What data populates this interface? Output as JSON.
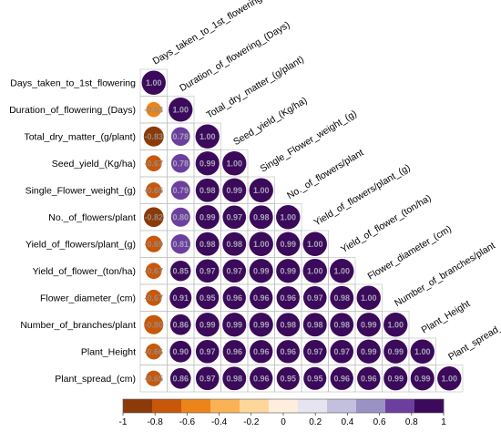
{
  "chart_data": {
    "type": "heatmap",
    "variables": [
      "Days_taken_to_1st_flowering",
      "Duration_of_flowering_(Days)",
      "Total_dry_matter_(g/plant)",
      "Seed_yield_(Kg/ha)",
      "Single_Flower_weight_(g)",
      "No._of_flowers/plant",
      "Yield_of_flowers/plant_(g)",
      "Yield_of_flower_(ton/ha)",
      "Flower_diameter_(cm)",
      "Number_of_branches/plant",
      "Plant_Height",
      "Plant_spread_(cm)"
    ],
    "matrix_lower": [
      [
        1.0
      ],
      [
        -0.63,
        1.0
      ],
      [
        -0.83,
        0.78,
        1.0
      ],
      [
        -0.67,
        0.78,
        0.99,
        1.0
      ],
      [
        -0.65,
        0.79,
        0.98,
        0.99,
        1.0
      ],
      [
        -0.82,
        0.8,
        0.99,
        0.97,
        0.98,
        1.0
      ],
      [
        -0.69,
        0.81,
        0.98,
        0.98,
        1.0,
        0.99,
        1.0
      ],
      [
        -0.67,
        0.85,
        0.97,
        0.97,
        0.99,
        0.99,
        1.0,
        1.0
      ],
      [
        -0.67,
        0.91,
        0.95,
        0.96,
        0.96,
        0.96,
        0.97,
        0.98,
        1.0
      ],
      [
        -0.8,
        0.86,
        0.99,
        0.99,
        0.99,
        0.98,
        0.98,
        0.98,
        0.99,
        1.0
      ],
      [
        -0.66,
        0.9,
        0.97,
        0.96,
        0.96,
        0.96,
        0.97,
        0.97,
        0.99,
        0.99,
        1.0
      ],
      [
        -0.65,
        0.86,
        0.97,
        0.98,
        0.96,
        0.95,
        0.95,
        0.96,
        0.96,
        0.99,
        0.99,
        1.0
      ]
    ],
    "colorbar": {
      "range": [
        -1,
        1
      ],
      "ticks": [
        "-1",
        "-0.8",
        "-0.6",
        "-0.4",
        "-0.2",
        "0",
        "0.2",
        "0.4",
        "0.6",
        "0.8",
        "1"
      ],
      "colors": [
        "#8c3a0a",
        "#c8570a",
        "#ec8419",
        "#fbb256",
        "#fdd79a",
        "#fdeede",
        "#e6e4f1",
        "#c3c0dd",
        "#9b92c4",
        "#6c3f9e",
        "#3b0a5a"
      ]
    }
  }
}
